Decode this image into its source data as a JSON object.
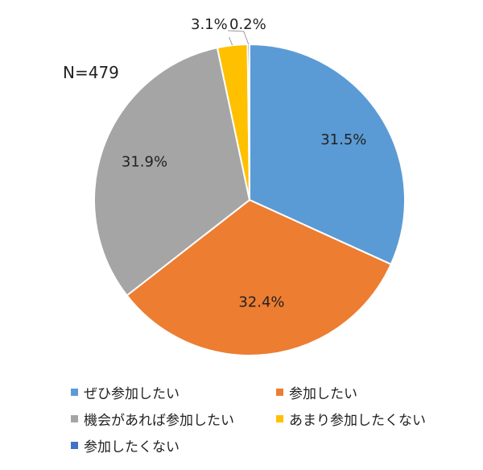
{
  "chart_data": {
    "type": "pie",
    "note": "N=479",
    "slices": [
      {
        "label": "ぜひ参加したい",
        "value": 31.5,
        "display": "31.5%",
        "color": "#5B9BD5"
      },
      {
        "label": "参加したい",
        "value": 32.4,
        "display": "32.4%",
        "color": "#ED7D31"
      },
      {
        "label": "機会があれば参加したい",
        "value": 31.9,
        "display": "31.9%",
        "color": "#A5A5A5"
      },
      {
        "label": "あまり参加したくない",
        "value": 3.1,
        "display": "3.1%",
        "color": "#FFC000"
      },
      {
        "label": "参加したくない",
        "value": 0.2,
        "display": "0.2%",
        "color": "#4472C4"
      }
    ],
    "legend_position": "bottom"
  }
}
